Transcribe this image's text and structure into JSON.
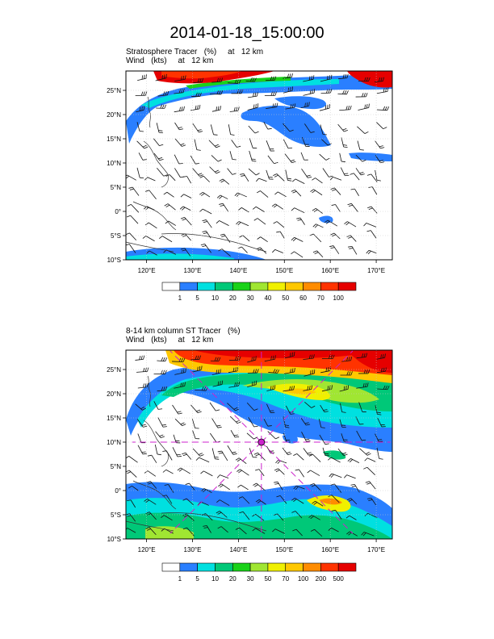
{
  "title": "2014-01-18_15:00:00",
  "panels": [
    {
      "id": "top",
      "subtitle_line1": "Stratosphere Tracer   (%)     at   12 km",
      "subtitle_line2": "Wind   (kts)     at   12 km",
      "lat_labels": [
        "25°N",
        "20°N",
        "15°N",
        "10°N",
        "5°N",
        "0°",
        "5°S",
        "10°S"
      ],
      "lon_labels": [
        "120°E",
        "130°E",
        "140°E",
        "150°E",
        "160°E",
        "170°E"
      ],
      "colorbar": {
        "labels": [
          "1",
          "5",
          "10",
          "20",
          "30",
          "40",
          "50",
          "60",
          "70",
          "100"
        ],
        "colors": [
          "#ffffff",
          "#2a7fff",
          "#00e0e0",
          "#00c878",
          "#19d219",
          "#a0e632",
          "#f0f000",
          "#ffc800",
          "#ff8c00",
          "#ff3300",
          "#e60000"
        ]
      }
    },
    {
      "id": "bottom",
      "subtitle_line1": "8-14 km column ST Tracer   (%)",
      "subtitle_line2": "Wind   (kts)     at   12 km",
      "lat_labels": [
        "25°N",
        "20°N",
        "15°N",
        "10°N",
        "5°N",
        "0°",
        "5°S",
        "10°S"
      ],
      "lon_labels": [
        "120°E",
        "130°E",
        "140°E",
        "150°E",
        "160°E",
        "170°E"
      ],
      "colorbar": {
        "labels": [
          "1",
          "5",
          "10",
          "20",
          "30",
          "50",
          "70",
          "100",
          "200",
          "500"
        ],
        "colors": [
          "#ffffff",
          "#2a7fff",
          "#00e0e0",
          "#00c878",
          "#19d219",
          "#a0e632",
          "#f0f000",
          "#ffc800",
          "#ff8c00",
          "#ff3300",
          "#e60000"
        ]
      },
      "storm_marker": {
        "lon": 145,
        "lat": 10,
        "color": "#cc22cc"
      }
    }
  ],
  "map_extent": {
    "lon_min": 115.5,
    "lon_max": 173.5,
    "lat_min": -10,
    "lat_max": 29
  },
  "lat_ticks": [
    25,
    20,
    15,
    10,
    5,
    0,
    -5,
    -10
  ],
  "lon_ticks": [
    120,
    130,
    140,
    150,
    160,
    170
  ]
}
